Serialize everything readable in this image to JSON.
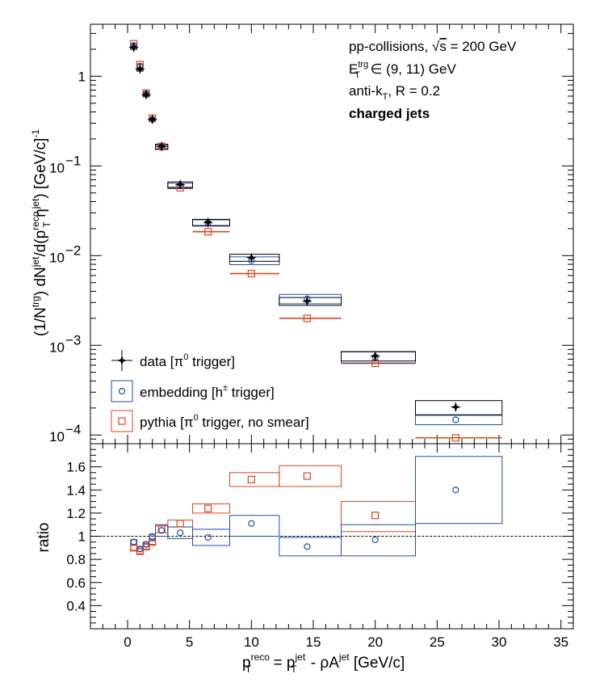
{
  "annotations": {
    "line1_prefix": "pp-collisions, ",
    "line1_sqrt": "√",
    "line1_s": "s",
    "line1_value": " = 200 GeV",
    "line2_E": "E",
    "line2_sup": "trg",
    "line2_sub": "T",
    "line2_rest": " ∈ (9, 11) GeV",
    "line3_prefix": "anti-k",
    "line3_sub": "T",
    "line3_rest": ", R = 0.2",
    "line4": "charged jets"
  },
  "colors": {
    "data": "#000000",
    "embedding": "#1f4fa8",
    "pythia": "#e0451b",
    "reference_line": "#000000"
  },
  "chart_data": [
    {
      "type": "scatter",
      "panel": "top",
      "yscale": "log",
      "ylabel_parts": [
        "(1/N",
        "trg",
        ") dN",
        "jet",
        "/d(p",
        "reco",
        "T",
        " η",
        "jet",
        ") [GeV/c]",
        "-1"
      ],
      "xlim": [
        -3,
        36
      ],
      "ylim": [
        8e-05,
        3.8
      ],
      "yticks": [
        {
          "value": 1,
          "mant": "1",
          "exp": ""
        },
        {
          "value": 0.1,
          "mant": "10",
          "exp": "−1"
        },
        {
          "value": 0.01,
          "mant": "10",
          "exp": "−2"
        },
        {
          "value": 0.001,
          "mant": "10",
          "exp": "−3"
        },
        {
          "value": 0.0001,
          "mant": "10",
          "exp": "−4"
        }
      ],
      "legend_position": "bottom-left",
      "series": [
        {
          "name": "data [π⁰ trigger]",
          "label_parts": [
            "data [π",
            "0",
            " trigger]"
          ],
          "marker": "star",
          "color": "#000000",
          "points": [
            {
              "x": 0.5,
              "xlo": 0.25,
              "xhi": 0.75,
              "y": 2.1,
              "sys": 0.05
            },
            {
              "x": 1.0,
              "xlo": 0.75,
              "xhi": 1.25,
              "y": 1.2,
              "sys": 0.05
            },
            {
              "x": 1.5,
              "xlo": 1.25,
              "xhi": 1.75,
              "y": 0.62,
              "sys": 0.05
            },
            {
              "x": 2.0,
              "xlo": 1.75,
              "xhi": 2.25,
              "y": 0.33,
              "sys": 0.05
            },
            {
              "x": 2.75,
              "xlo": 2.25,
              "xhi": 3.25,
              "y": 0.165,
              "sys": 0.06
            },
            {
              "x": 4.25,
              "xlo": 3.25,
              "xhi": 5.25,
              "y": 0.062,
              "sys": 0.07
            },
            {
              "x": 6.5,
              "xlo": 5.25,
              "xhi": 8.25,
              "y": 0.0235,
              "sys": 0.08
            },
            {
              "x": 10.0,
              "xlo": 8.25,
              "xhi": 12.25,
              "y": 0.0095,
              "sys": 0.09
            },
            {
              "x": 14.5,
              "xlo": 12.25,
              "xhi": 17.25,
              "y": 0.0031,
              "sys": 0.1
            },
            {
              "x": 20.0,
              "xlo": 17.25,
              "xhi": 23.25,
              "y": 0.00076,
              "sys": 0.12
            },
            {
              "x": 26.5,
              "xlo": 23.25,
              "xhi": 30.25,
              "y": 0.000205,
              "sys": 0.18
            }
          ]
        },
        {
          "name": "embedding [h± trigger]",
          "label_parts": [
            "embedding [h",
            "±",
            " trigger]"
          ],
          "marker": "open-circle",
          "color": "#1f4fa8",
          "points": [
            {
              "x": 0.5,
              "xlo": 0.25,
              "xhi": 0.75,
              "y": 2.2,
              "sys": 0.05
            },
            {
              "x": 1.0,
              "xlo": 0.75,
              "xhi": 1.25,
              "y": 1.3,
              "sys": 0.05
            },
            {
              "x": 1.5,
              "xlo": 1.25,
              "xhi": 1.75,
              "y": 0.64,
              "sys": 0.05
            },
            {
              "x": 2.0,
              "xlo": 1.75,
              "xhi": 2.25,
              "y": 0.33,
              "sys": 0.05
            },
            {
              "x": 2.75,
              "xlo": 2.25,
              "xhi": 3.25,
              "y": 0.162,
              "sys": 0.06
            },
            {
              "x": 4.25,
              "xlo": 3.25,
              "xhi": 5.25,
              "y": 0.06,
              "sys": 0.07
            },
            {
              "x": 6.5,
              "xlo": 5.25,
              "xhi": 8.25,
              "y": 0.0232,
              "sys": 0.08
            },
            {
              "x": 10.0,
              "xlo": 8.25,
              "xhi": 12.25,
              "y": 0.0088,
              "sys": 0.1
            },
            {
              "x": 14.5,
              "xlo": 12.25,
              "xhi": 17.25,
              "y": 0.0033,
              "sys": 0.12
            },
            {
              "x": 20.0,
              "xlo": 17.25,
              "xhi": 23.25,
              "y": 0.00074,
              "sys": 0.14
            },
            {
              "x": 26.5,
              "xlo": 23.25,
              "xhi": 30.25,
              "y": 0.000148,
              "sys": 0.12
            }
          ]
        },
        {
          "name": "pythia [π⁰ trigger, no smear]",
          "label_parts": [
            "pythia [π",
            "0",
            " trigger, no smear]"
          ],
          "marker": "open-square",
          "color": "#e0451b",
          "points": [
            {
              "x": 0.5,
              "xlo": 0.25,
              "xhi": 0.75,
              "y": 2.3,
              "sys": 0.0
            },
            {
              "x": 1.0,
              "xlo": 0.75,
              "xhi": 1.25,
              "y": 1.35,
              "sys": 0.0
            },
            {
              "x": 1.5,
              "xlo": 1.25,
              "xhi": 1.75,
              "y": 0.65,
              "sys": 0.0
            },
            {
              "x": 2.0,
              "xlo": 1.75,
              "xhi": 2.25,
              "y": 0.34,
              "sys": 0.0
            },
            {
              "x": 2.75,
              "xlo": 2.25,
              "xhi": 3.25,
              "y": 0.165,
              "sys": 0.0
            },
            {
              "x": 4.25,
              "xlo": 3.25,
              "xhi": 5.25,
              "y": 0.057,
              "sys": 0.0
            },
            {
              "x": 6.5,
              "xlo": 5.25,
              "xhi": 8.25,
              "y": 0.0185,
              "sys": 0.0
            },
            {
              "x": 10.0,
              "xlo": 8.25,
              "xhi": 12.25,
              "y": 0.0063,
              "sys": 0.0
            },
            {
              "x": 14.5,
              "xlo": 12.25,
              "xhi": 17.25,
              "y": 0.002,
              "sys": 0.0
            },
            {
              "x": 20.0,
              "xlo": 17.25,
              "xhi": 23.25,
              "y": 0.00063,
              "sys": 0.0
            },
            {
              "x": 26.5,
              "xlo": 23.25,
              "xhi": 30.25,
              "y": 9.3e-05,
              "sys": 0.0
            }
          ]
        }
      ]
    },
    {
      "type": "scatter",
      "panel": "bottom",
      "yscale": "linear",
      "ylabel": "ratio",
      "xlabel_parts": [
        "p",
        "reco",
        "T",
        " = p",
        "jet",
        "T",
        " - ρA",
        "jet",
        " [GeV/c]"
      ],
      "xlim": [
        -3,
        36
      ],
      "ylim": [
        0.2,
        1.8
      ],
      "xticks": [
        0,
        5,
        10,
        15,
        20,
        25,
        30,
        35
      ],
      "yticks": [
        0.4,
        0.6,
        0.8,
        1,
        1.2,
        1.4,
        1.6
      ],
      "reference_line": 1.0,
      "series": [
        {
          "name": "embedding [h± trigger]",
          "marker": "open-circle",
          "color": "#1f4fa8",
          "points": [
            {
              "x": 0.5,
              "xlo": 0.25,
              "xhi": 0.75,
              "y": 0.95,
              "ylo": 0.93,
              "yhi": 0.97
            },
            {
              "x": 1.0,
              "xlo": 0.75,
              "xhi": 1.25,
              "y": 0.89,
              "ylo": 0.87,
              "yhi": 0.91
            },
            {
              "x": 1.5,
              "xlo": 1.25,
              "xhi": 1.75,
              "y": 0.93,
              "ylo": 0.91,
              "yhi": 0.95
            },
            {
              "x": 2.0,
              "xlo": 1.75,
              "xhi": 2.25,
              "y": 0.99,
              "ylo": 0.96,
              "yhi": 1.02
            },
            {
              "x": 2.75,
              "xlo": 2.25,
              "xhi": 3.25,
              "y": 1.05,
              "ylo": 1.0,
              "yhi": 1.1
            },
            {
              "x": 4.25,
              "xlo": 3.25,
              "xhi": 5.25,
              "y": 1.03,
              "ylo": 0.98,
              "yhi": 1.08
            },
            {
              "x": 6.5,
              "xlo": 5.25,
              "xhi": 8.25,
              "y": 0.99,
              "ylo": 0.92,
              "yhi": 1.06
            },
            {
              "x": 10.0,
              "xlo": 8.25,
              "xhi": 12.25,
              "y": 1.11,
              "ylo": 1.0,
              "yhi": 1.18
            },
            {
              "x": 14.5,
              "xlo": 12.25,
              "xhi": 17.25,
              "y": 0.91,
              "ylo": 0.83,
              "yhi": 0.99
            },
            {
              "x": 20.0,
              "xlo": 17.25,
              "xhi": 23.25,
              "y": 0.97,
              "ylo": 0.83,
              "yhi": 1.1
            },
            {
              "x": 26.5,
              "xlo": 23.25,
              "xhi": 30.25,
              "y": 1.4,
              "ylo": 1.11,
              "yhi": 1.69
            }
          ]
        },
        {
          "name": "pythia [π⁰ trigger, no smear]",
          "marker": "open-square",
          "color": "#e0451b",
          "points": [
            {
              "x": 0.5,
              "xlo": 0.25,
              "xhi": 0.75,
              "y": 0.9,
              "ylo": 0.88,
              "yhi": 0.92
            },
            {
              "x": 1.0,
              "xlo": 0.75,
              "xhi": 1.25,
              "y": 0.87,
              "ylo": 0.85,
              "yhi": 0.89
            },
            {
              "x": 1.5,
              "xlo": 1.25,
              "xhi": 1.75,
              "y": 0.91,
              "ylo": 0.89,
              "yhi": 0.93
            },
            {
              "x": 2.0,
              "xlo": 1.75,
              "xhi": 2.25,
              "y": 0.95,
              "ylo": 0.93,
              "yhi": 0.97
            },
            {
              "x": 2.75,
              "xlo": 2.25,
              "xhi": 3.25,
              "y": 1.06,
              "ylo": 1.03,
              "yhi": 1.09
            },
            {
              "x": 4.25,
              "xlo": 3.25,
              "xhi": 5.25,
              "y": 1.11,
              "ylo": 1.08,
              "yhi": 1.14
            },
            {
              "x": 6.5,
              "xlo": 5.25,
              "xhi": 8.25,
              "y": 1.24,
              "ylo": 1.2,
              "yhi": 1.28
            },
            {
              "x": 10.0,
              "xlo": 8.25,
              "xhi": 12.25,
              "y": 1.49,
              "ylo": 1.43,
              "yhi": 1.55
            },
            {
              "x": 14.5,
              "xlo": 12.25,
              "xhi": 17.25,
              "y": 1.52,
              "ylo": 1.43,
              "yhi": 1.61
            },
            {
              "x": 20.0,
              "xlo": 17.25,
              "xhi": 23.25,
              "y": 1.18,
              "ylo": 1.04,
              "yhi": 1.3
            }
          ]
        }
      ]
    }
  ]
}
